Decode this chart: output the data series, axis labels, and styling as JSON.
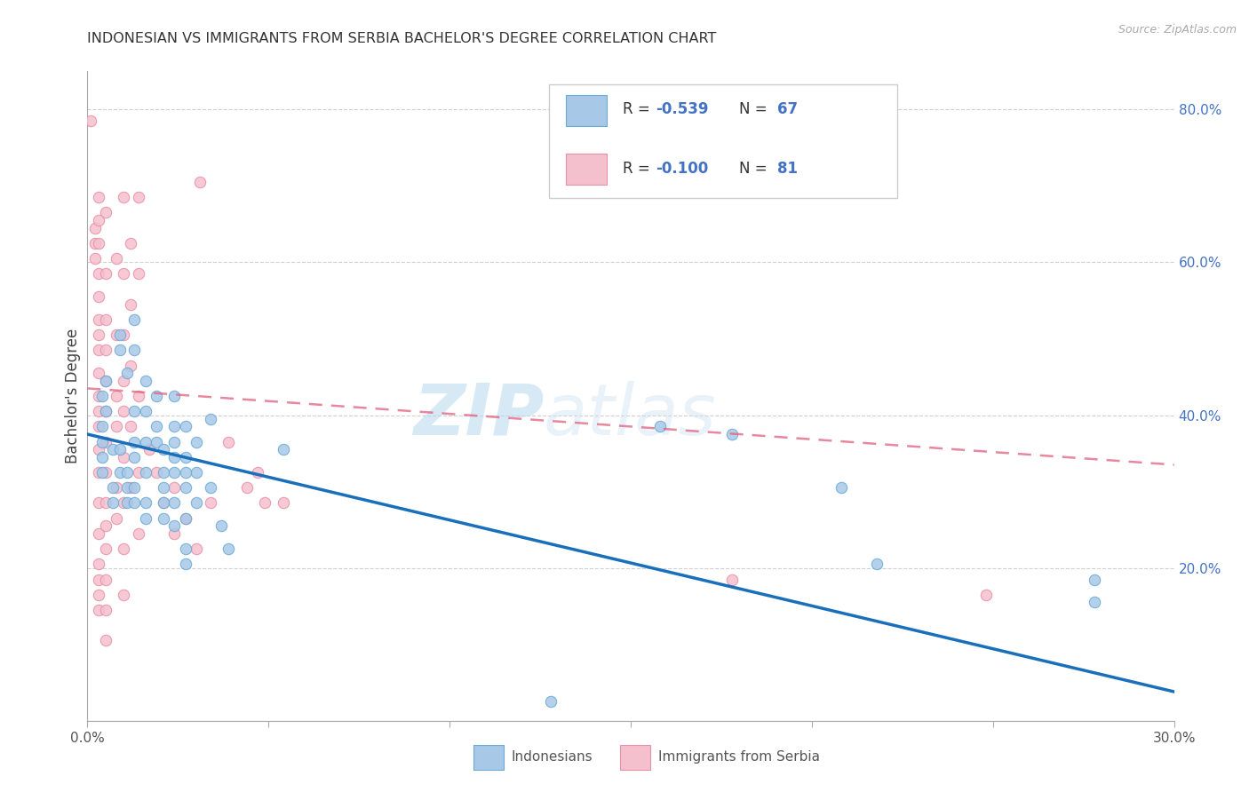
{
  "title": "INDONESIAN VS IMMIGRANTS FROM SERBIA BACHELOR'S DEGREE CORRELATION CHART",
  "source": "Source: ZipAtlas.com",
  "ylabel": "Bachelor's Degree",
  "legend_label_blue": "Indonesians",
  "legend_label_pink": "Immigrants from Serbia",
  "xlim": [
    0.0,
    0.3
  ],
  "ylim": [
    0.0,
    0.85
  ],
  "right_yticks": [
    0.2,
    0.4,
    0.6,
    0.8
  ],
  "right_ytick_labels": [
    "20.0%",
    "40.0%",
    "60.0%",
    "80.0%"
  ],
  "xticks": [
    0.0,
    0.05,
    0.1,
    0.15,
    0.2,
    0.25,
    0.3
  ],
  "watermark_zip": "ZIP",
  "watermark_atlas": "atlas",
  "blue_color": "#a8c8e8",
  "blue_edge_color": "#6aaad4",
  "blue_line_color": "#1a6fba",
  "pink_color": "#f5c0ce",
  "pink_edge_color": "#e890a8",
  "pink_line_color": "#e0607e",
  "blue_scatter": [
    [
      0.004,
      0.425
    ],
    [
      0.004,
      0.385
    ],
    [
      0.004,
      0.365
    ],
    [
      0.004,
      0.345
    ],
    [
      0.004,
      0.325
    ],
    [
      0.005,
      0.445
    ],
    [
      0.005,
      0.405
    ],
    [
      0.007,
      0.355
    ],
    [
      0.007,
      0.305
    ],
    [
      0.007,
      0.285
    ],
    [
      0.009,
      0.505
    ],
    [
      0.009,
      0.485
    ],
    [
      0.009,
      0.355
    ],
    [
      0.009,
      0.325
    ],
    [
      0.011,
      0.455
    ],
    [
      0.011,
      0.325
    ],
    [
      0.011,
      0.305
    ],
    [
      0.011,
      0.285
    ],
    [
      0.013,
      0.525
    ],
    [
      0.013,
      0.485
    ],
    [
      0.013,
      0.405
    ],
    [
      0.013,
      0.365
    ],
    [
      0.013,
      0.345
    ],
    [
      0.013,
      0.305
    ],
    [
      0.013,
      0.285
    ],
    [
      0.016,
      0.445
    ],
    [
      0.016,
      0.405
    ],
    [
      0.016,
      0.365
    ],
    [
      0.016,
      0.325
    ],
    [
      0.016,
      0.285
    ],
    [
      0.016,
      0.265
    ],
    [
      0.019,
      0.425
    ],
    [
      0.019,
      0.385
    ],
    [
      0.019,
      0.365
    ],
    [
      0.021,
      0.355
    ],
    [
      0.021,
      0.325
    ],
    [
      0.021,
      0.305
    ],
    [
      0.021,
      0.285
    ],
    [
      0.021,
      0.265
    ],
    [
      0.024,
      0.425
    ],
    [
      0.024,
      0.385
    ],
    [
      0.024,
      0.365
    ],
    [
      0.024,
      0.345
    ],
    [
      0.024,
      0.325
    ],
    [
      0.024,
      0.285
    ],
    [
      0.024,
      0.255
    ],
    [
      0.027,
      0.385
    ],
    [
      0.027,
      0.345
    ],
    [
      0.027,
      0.325
    ],
    [
      0.027,
      0.305
    ],
    [
      0.027,
      0.265
    ],
    [
      0.027,
      0.225
    ],
    [
      0.027,
      0.205
    ],
    [
      0.03,
      0.365
    ],
    [
      0.03,
      0.325
    ],
    [
      0.03,
      0.285
    ],
    [
      0.034,
      0.395
    ],
    [
      0.034,
      0.305
    ],
    [
      0.037,
      0.255
    ],
    [
      0.039,
      0.225
    ],
    [
      0.054,
      0.355
    ],
    [
      0.128,
      0.025
    ],
    [
      0.158,
      0.385
    ],
    [
      0.178,
      0.375
    ],
    [
      0.208,
      0.305
    ],
    [
      0.218,
      0.205
    ],
    [
      0.278,
      0.185
    ],
    [
      0.278,
      0.155
    ]
  ],
  "pink_scatter": [
    [
      0.001,
      0.785
    ],
    [
      0.002,
      0.625
    ],
    [
      0.002,
      0.645
    ],
    [
      0.002,
      0.605
    ],
    [
      0.003,
      0.685
    ],
    [
      0.003,
      0.655
    ],
    [
      0.003,
      0.625
    ],
    [
      0.003,
      0.585
    ],
    [
      0.003,
      0.555
    ],
    [
      0.003,
      0.525
    ],
    [
      0.003,
      0.505
    ],
    [
      0.003,
      0.485
    ],
    [
      0.003,
      0.455
    ],
    [
      0.003,
      0.425
    ],
    [
      0.003,
      0.405
    ],
    [
      0.003,
      0.385
    ],
    [
      0.003,
      0.355
    ],
    [
      0.003,
      0.325
    ],
    [
      0.003,
      0.285
    ],
    [
      0.003,
      0.245
    ],
    [
      0.003,
      0.205
    ],
    [
      0.003,
      0.185
    ],
    [
      0.003,
      0.165
    ],
    [
      0.003,
      0.145
    ],
    [
      0.005,
      0.665
    ],
    [
      0.005,
      0.585
    ],
    [
      0.005,
      0.525
    ],
    [
      0.005,
      0.485
    ],
    [
      0.005,
      0.445
    ],
    [
      0.005,
      0.405
    ],
    [
      0.005,
      0.365
    ],
    [
      0.005,
      0.325
    ],
    [
      0.005,
      0.285
    ],
    [
      0.005,
      0.255
    ],
    [
      0.005,
      0.225
    ],
    [
      0.005,
      0.185
    ],
    [
      0.005,
      0.145
    ],
    [
      0.005,
      0.105
    ],
    [
      0.008,
      0.605
    ],
    [
      0.008,
      0.505
    ],
    [
      0.008,
      0.425
    ],
    [
      0.008,
      0.385
    ],
    [
      0.008,
      0.305
    ],
    [
      0.008,
      0.265
    ],
    [
      0.01,
      0.685
    ],
    [
      0.01,
      0.585
    ],
    [
      0.01,
      0.505
    ],
    [
      0.01,
      0.445
    ],
    [
      0.01,
      0.405
    ],
    [
      0.01,
      0.345
    ],
    [
      0.01,
      0.285
    ],
    [
      0.01,
      0.225
    ],
    [
      0.01,
      0.165
    ],
    [
      0.012,
      0.625
    ],
    [
      0.012,
      0.545
    ],
    [
      0.012,
      0.465
    ],
    [
      0.012,
      0.385
    ],
    [
      0.012,
      0.305
    ],
    [
      0.014,
      0.685
    ],
    [
      0.014,
      0.585
    ],
    [
      0.014,
      0.425
    ],
    [
      0.014,
      0.325
    ],
    [
      0.014,
      0.245
    ],
    [
      0.017,
      0.355
    ],
    [
      0.019,
      0.325
    ],
    [
      0.021,
      0.285
    ],
    [
      0.024,
      0.305
    ],
    [
      0.024,
      0.245
    ],
    [
      0.027,
      0.265
    ],
    [
      0.03,
      0.225
    ],
    [
      0.031,
      0.705
    ],
    [
      0.034,
      0.285
    ],
    [
      0.039,
      0.365
    ],
    [
      0.044,
      0.305
    ],
    [
      0.047,
      0.325
    ],
    [
      0.049,
      0.285
    ],
    [
      0.054,
      0.285
    ],
    [
      0.178,
      0.185
    ],
    [
      0.248,
      0.165
    ]
  ],
  "blue_trend_x": [
    0.0,
    0.3
  ],
  "blue_trend_y": [
    0.375,
    0.038
  ],
  "pink_trend_x": [
    0.0,
    0.3
  ],
  "pink_trend_y": [
    0.435,
    0.335
  ]
}
